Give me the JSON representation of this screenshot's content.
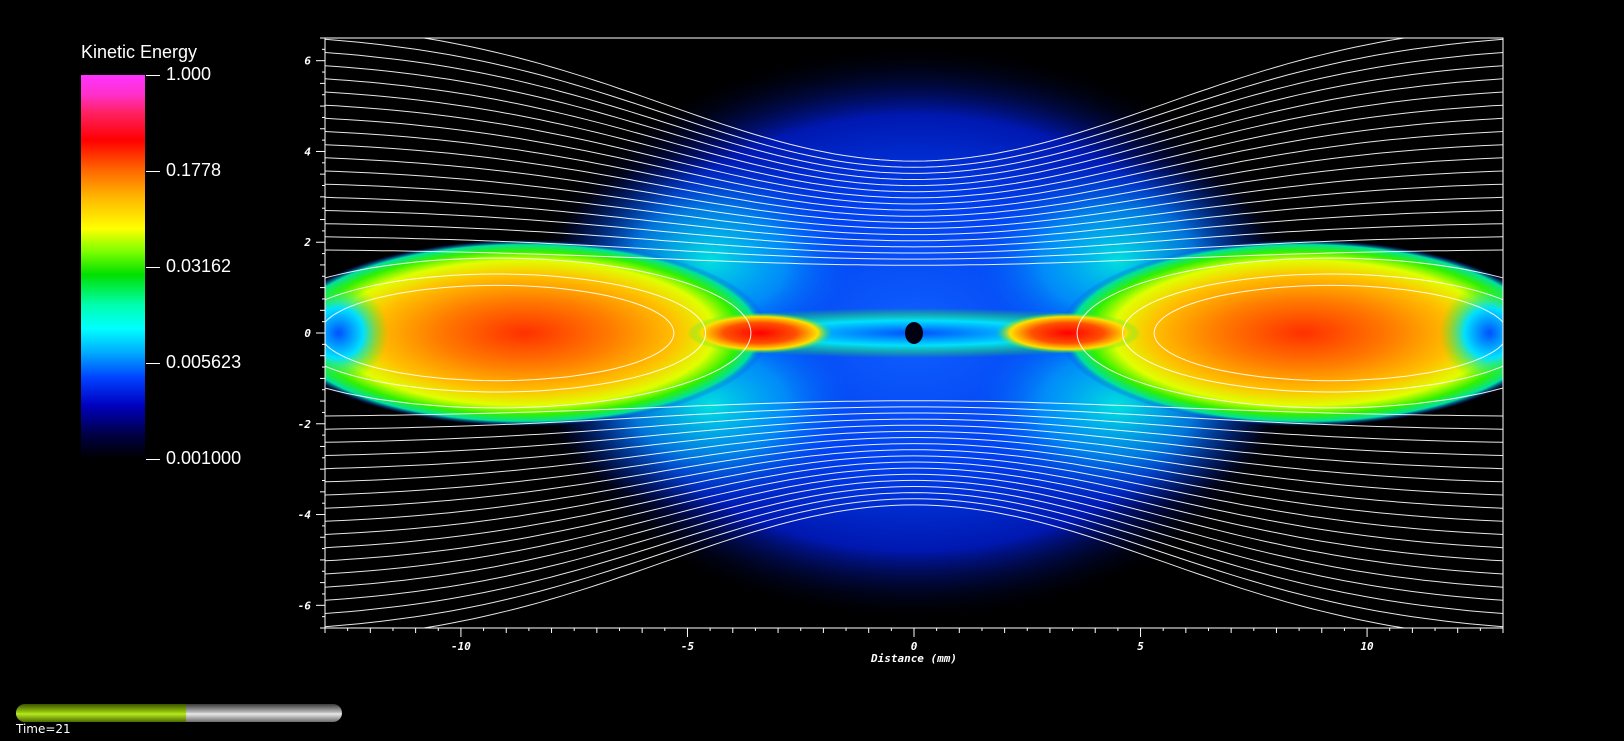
{
  "chart_data": {
    "type": "heatmap",
    "title": "",
    "xlabel": "Distance (mm)",
    "ylabel": "",
    "xlim": [
      -13,
      13
    ],
    "ylim": [
      -6.5,
      6.5
    ],
    "x_ticks": [
      -10,
      -5,
      0,
      5,
      10
    ],
    "y_ticks": [
      6,
      4,
      2,
      0,
      -2,
      -4,
      -6
    ],
    "colorbar": {
      "title": "Kinetic Energy",
      "scale": "log",
      "range": [
        0.001,
        1.0
      ],
      "labels": [
        "1.000",
        "0.1778",
        "0.03162",
        "0.005623",
        "0.001000"
      ],
      "values": [
        1.0,
        0.1778,
        0.03162,
        0.005623,
        0.001
      ]
    },
    "streamlines": "white",
    "grid": false
  },
  "time": {
    "label": "Time=21",
    "progress": 0.52
  }
}
